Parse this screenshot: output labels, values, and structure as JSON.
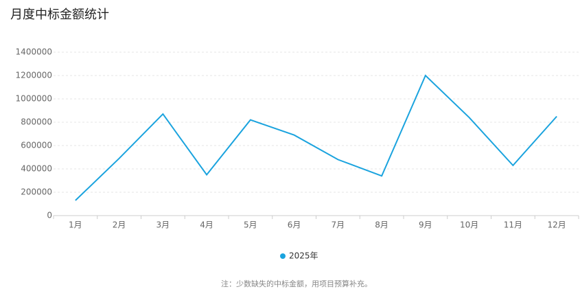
{
  "chart_data": {
    "type": "line",
    "title": "月度中标金额统计",
    "categories": [
      "1月",
      "2月",
      "3月",
      "4月",
      "5月",
      "6月",
      "7月",
      "8月",
      "9月",
      "10月",
      "11月",
      "12月"
    ],
    "series": [
      {
        "name": "2025年",
        "color": "#1aa3de",
        "values": [
          130000,
          490000,
          870000,
          350000,
          820000,
          690000,
          480000,
          340000,
          1200000,
          840000,
          430000,
          850000
        ]
      }
    ],
    "ylim": [
      0,
      1400000
    ],
    "yticks": [
      0,
      200000,
      400000,
      600000,
      800000,
      1000000,
      1200000,
      1400000
    ],
    "grid": true,
    "legend": "bottom",
    "note": "注：少数缺失的中标金额，用项目预算补充。"
  }
}
